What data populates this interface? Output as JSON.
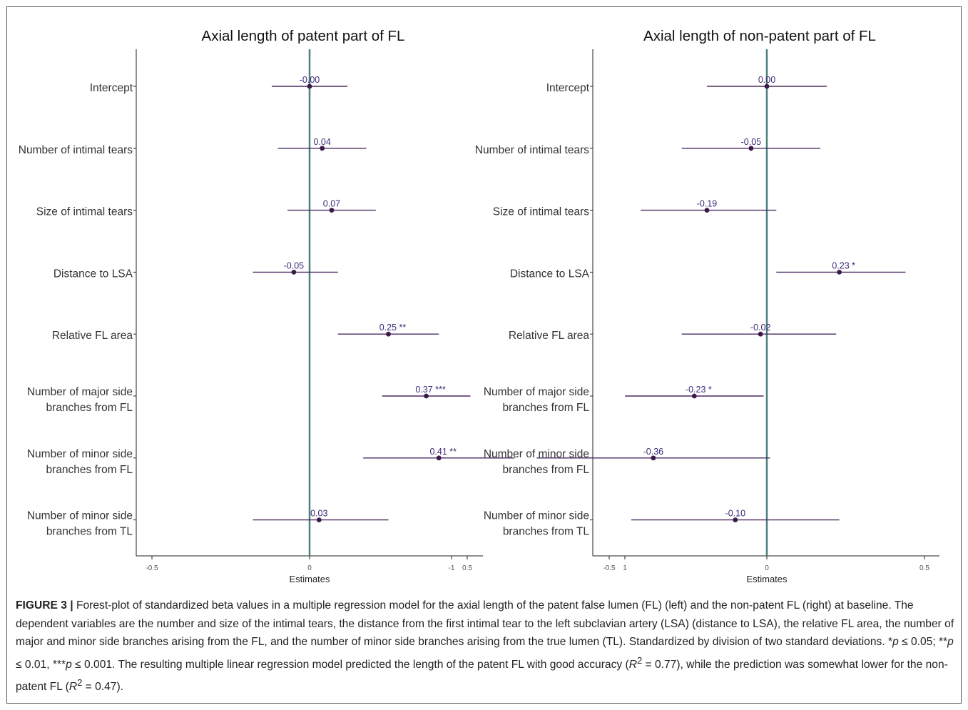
{
  "chart_data": [
    {
      "type": "forest",
      "title": "Axial length of patent part of FL",
      "xlabel": "Estimates",
      "xlim": [
        -1.1,
        1.1
      ],
      "xticks": [
        -1,
        -0.5,
        0,
        0.5,
        1
      ],
      "xtick_labels": [
        "-1",
        "-0.5",
        "0",
        "0.5",
        "1"
      ],
      "reference_line": 0,
      "colors": {
        "point": "#3b1a4a",
        "whisker": "#4a2a5e",
        "label": "#3d2a78",
        "zero_line": "#4f7f7f"
      },
      "rows": [
        {
          "label": [
            "Intercept"
          ],
          "estimate": 0.0,
          "ci": [
            -0.12,
            0.12
          ],
          "value_label": "-0.00"
        },
        {
          "label": [
            "Number of intimal tears"
          ],
          "estimate": 0.04,
          "ci": [
            -0.1,
            0.18
          ],
          "value_label": "0.04"
        },
        {
          "label": [
            "Size of intimal tears"
          ],
          "estimate": 0.07,
          "ci": [
            -0.07,
            0.21
          ],
          "value_label": "0.07"
        },
        {
          "label": [
            "Distance to LSA"
          ],
          "estimate": -0.05,
          "ci": [
            -0.18,
            0.09
          ],
          "value_label": "-0.05"
        },
        {
          "label": [
            "Relative FL area"
          ],
          "estimate": 0.25,
          "ci": [
            0.09,
            0.41
          ],
          "value_label": "0.25 **"
        },
        {
          "label": [
            "Number of major side",
            "branches from FL"
          ],
          "estimate": 0.37,
          "ci": [
            0.23,
            0.51
          ],
          "value_label": "0.37 ***"
        },
        {
          "label": [
            "Number of minor side",
            "branches from FL"
          ],
          "estimate": 0.41,
          "ci": [
            0.17,
            0.65
          ],
          "value_label": "0.41 **"
        },
        {
          "label": [
            "Number of minor side",
            "branches from TL"
          ],
          "estimate": 0.03,
          "ci": [
            -0.18,
            0.25
          ],
          "value_label": "0.03"
        }
      ]
    },
    {
      "type": "forest",
      "title": "Axial length of non-patent part of FL",
      "xlabel": "Estimates",
      "xlim": [
        -1.1,
        1.1
      ],
      "xticks": [
        -1,
        -0.5,
        0,
        0.5,
        1
      ],
      "xtick_labels": [
        "-1",
        "-0.5",
        "0",
        "0.5",
        "1"
      ],
      "reference_line": 0,
      "colors": {
        "point": "#3b1a4a",
        "whisker": "#4a2a5e",
        "label": "#3d2a78",
        "zero_line": "#4f7f7f"
      },
      "rows": [
        {
          "label": [
            "Intercept"
          ],
          "estimate": 0.0,
          "ci": [
            -0.19,
            0.19
          ],
          "value_label": "0.00"
        },
        {
          "label": [
            "Number of intimal tears"
          ],
          "estimate": -0.05,
          "ci": [
            -0.27,
            0.17
          ],
          "value_label": "-0.05"
        },
        {
          "label": [
            "Size of intimal tears"
          ],
          "estimate": -0.19,
          "ci": [
            -0.4,
            0.03
          ],
          "value_label": "-0.19"
        },
        {
          "label": [
            "Distance to LSA"
          ],
          "estimate": 0.23,
          "ci": [
            0.03,
            0.44
          ],
          "value_label": "0.23 *"
        },
        {
          "label": [
            "Relative FL area"
          ],
          "estimate": -0.02,
          "ci": [
            -0.27,
            0.22
          ],
          "value_label": "-0.02"
        },
        {
          "label": [
            "Number of major side",
            "branches from FL"
          ],
          "estimate": -0.23,
          "ci": [
            -0.45,
            -0.01
          ],
          "value_label": "-0.23 *"
        },
        {
          "label": [
            "Number of minor side",
            "branches from FL"
          ],
          "estimate": -0.36,
          "ci": [
            -0.73,
            0.01
          ],
          "value_label": "-0.36"
        },
        {
          "label": [
            "Number of minor side",
            "branches from TL"
          ],
          "estimate": -0.1,
          "ci": [
            -0.43,
            0.23
          ],
          "value_label": "-0.10"
        }
      ]
    }
  ],
  "caption": {
    "label": "FIGURE 3 |",
    "text_1": " Forest-plot of standardized beta values in a multiple regression model for the axial length of the patent false lumen (FL) (left) and the non-patent FL (right) at baseline. The dependent variables are the number and size of the intimal tears, the distance from the first intimal tear to the left subclavian artery (LSA) (distance to LSA), the relative FL area, the number of major and minor side branches arising from the FL, and the number of minor side branches arising from the true lumen (TL). Standardized by division of two standard deviations. *",
    "p1": "p",
    "text_2": " ≤ 0.05; **",
    "p2": "p",
    "text_3": " ≤ 0.01, ***",
    "p3": "p",
    "text_4": " ≤ 0.001. The resulting multiple linear regression model predicted the length of the patent FL with good accuracy (",
    "r1": "R",
    "sup1": "2",
    "text_5": " = 0.77), while the prediction was somewhat lower for the non-patent FL (",
    "r2": "R",
    "sup2": "2",
    "text_6": " = 0.47)."
  }
}
